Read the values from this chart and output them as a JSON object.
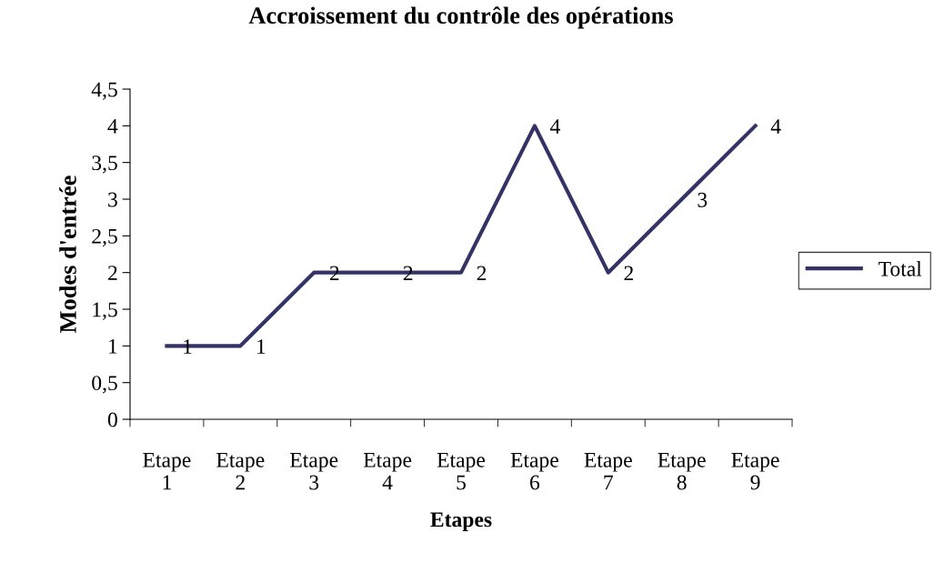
{
  "chart_data": {
    "type": "line",
    "title": "Accroissement du contrôle des opérations",
    "xlabel": "Etapes",
    "ylabel": "Modes d'entrée",
    "categories": [
      "Etape 1",
      "Etape 2",
      "Etape 3",
      "Etape 4",
      "Etape 5",
      "Etape 6",
      "Etape 7",
      "Etape 8",
      "Etape 9"
    ],
    "series": [
      {
        "name": "Total",
        "color": "#333366",
        "values": [
          1,
          1,
          2,
          2,
          2,
          4,
          2,
          3,
          4
        ]
      }
    ],
    "ylim": [
      0,
      4.5
    ],
    "yticks": [
      0,
      {
        "value": 0.5,
        "label": "0,5"
      },
      1,
      {
        "value": 1.5,
        "label": "1,5"
      },
      2,
      {
        "value": 2.5,
        "label": "2,5"
      },
      3,
      {
        "value": 3.5,
        "label": "3,5"
      },
      4,
      {
        "value": 4.5,
        "label": "4,5"
      }
    ],
    "data_labels": true,
    "grid": false,
    "legend": "right",
    "marker": "none",
    "line_style": "solid"
  }
}
